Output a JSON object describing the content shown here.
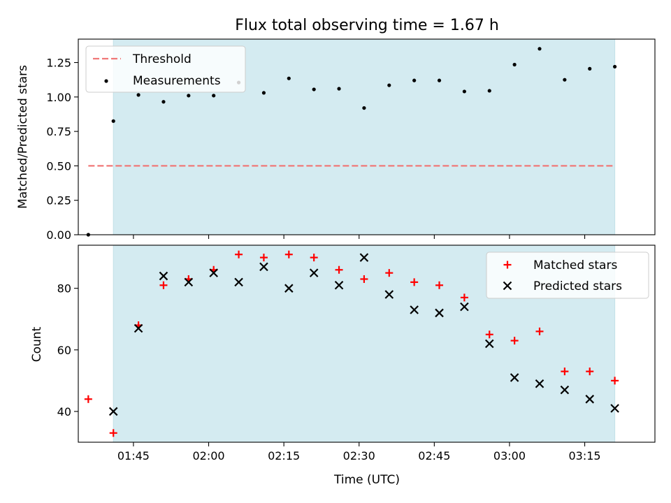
{
  "chart_data": [
    {
      "type": "scatter",
      "title": "Flux total observing time = 1.67 h",
      "ylabel": "Matched/Predicted stars",
      "xlim": [
        "01:34",
        "03:29"
      ],
      "ylim": [
        0,
        1.42
      ],
      "yticks": [
        0.0,
        0.25,
        0.5,
        0.75,
        1.0,
        1.25
      ],
      "ytick_labels": [
        "0.00",
        "0.25",
        "0.50",
        "0.75",
        "1.00",
        "1.25"
      ],
      "shaded_span": [
        "01:41",
        "03:21"
      ],
      "shade_color": "#d4ebf1",
      "legend_position": "upper left",
      "legend": [
        "Threshold",
        "Measurements"
      ],
      "threshold": {
        "name": "Threshold",
        "color": "#f07878",
        "y": 0.5,
        "x_range": [
          "01:36",
          "03:21"
        ]
      },
      "series": [
        {
          "name": "Measurements",
          "color": "#000000",
          "points": [
            {
              "x": "01:36",
              "y": 0.0
            },
            {
              "x": "01:41",
              "y": 0.825
            },
            {
              "x": "01:46",
              "y": 1.015
            },
            {
              "x": "01:51",
              "y": 0.965
            },
            {
              "x": "01:56",
              "y": 1.01
            },
            {
              "x": "02:01",
              "y": 1.01
            },
            {
              "x": "02:06",
              "y": 1.105
            },
            {
              "x": "02:11",
              "y": 1.03
            },
            {
              "x": "02:16",
              "y": 1.135
            },
            {
              "x": "02:21",
              "y": 1.055
            },
            {
              "x": "02:26",
              "y": 1.06
            },
            {
              "x": "02:31",
              "y": 0.92
            },
            {
              "x": "02:36",
              "y": 1.085
            },
            {
              "x": "02:41",
              "y": 1.12
            },
            {
              "x": "02:46",
              "y": 1.12
            },
            {
              "x": "02:51",
              "y": 1.04
            },
            {
              "x": "02:56",
              "y": 1.045
            },
            {
              "x": "03:01",
              "y": 1.235
            },
            {
              "x": "03:06",
              "y": 1.35
            },
            {
              "x": "03:11",
              "y": 1.125
            },
            {
              "x": "03:16",
              "y": 1.205
            },
            {
              "x": "03:21",
              "y": 1.22
            }
          ]
        }
      ]
    },
    {
      "type": "scatter",
      "xlabel": "Time (UTC)",
      "ylabel": "Count",
      "xlim": [
        "01:34",
        "03:29"
      ],
      "ylim": [
        30,
        94
      ],
      "xticks": [
        "01:45",
        "02:00",
        "02:15",
        "02:30",
        "02:45",
        "03:00",
        "03:15"
      ],
      "xtick_labels": [
        "01:45",
        "02:00",
        "02:15",
        "02:30",
        "02:45",
        "03:00",
        "03:15"
      ],
      "yticks": [
        40,
        60,
        80
      ],
      "ytick_labels": [
        "40",
        "60",
        "80"
      ],
      "shaded_span": [
        "01:41",
        "03:21"
      ],
      "shade_color": "#d4ebf1",
      "legend_position": "upper right",
      "legend": [
        "Matched stars",
        "Predicted stars"
      ],
      "series": [
        {
          "name": "Matched stars",
          "marker": "plus",
          "color": "#ff0000",
          "points": [
            {
              "x": "01:36",
              "y": 44
            },
            {
              "x": "01:41",
              "y": 33
            },
            {
              "x": "01:46",
              "y": 68
            },
            {
              "x": "01:51",
              "y": 81
            },
            {
              "x": "01:56",
              "y": 83
            },
            {
              "x": "02:01",
              "y": 86
            },
            {
              "x": "02:06",
              "y": 91
            },
            {
              "x": "02:11",
              "y": 90
            },
            {
              "x": "02:16",
              "y": 91
            },
            {
              "x": "02:21",
              "y": 90
            },
            {
              "x": "02:26",
              "y": 86
            },
            {
              "x": "02:31",
              "y": 83
            },
            {
              "x": "02:36",
              "y": 85
            },
            {
              "x": "02:41",
              "y": 82
            },
            {
              "x": "02:46",
              "y": 81
            },
            {
              "x": "02:51",
              "y": 77
            },
            {
              "x": "02:56",
              "y": 65
            },
            {
              "x": "03:01",
              "y": 63
            },
            {
              "x": "03:06",
              "y": 66
            },
            {
              "x": "03:11",
              "y": 53
            },
            {
              "x": "03:16",
              "y": 53
            },
            {
              "x": "03:21",
              "y": 50
            }
          ]
        },
        {
          "name": "Predicted stars",
          "marker": "x",
          "color": "#000000",
          "points": [
            {
              "x": "01:41",
              "y": 40
            },
            {
              "x": "01:46",
              "y": 67
            },
            {
              "x": "01:51",
              "y": 84
            },
            {
              "x": "01:56",
              "y": 82
            },
            {
              "x": "02:01",
              "y": 85
            },
            {
              "x": "02:06",
              "y": 82
            },
            {
              "x": "02:11",
              "y": 87
            },
            {
              "x": "02:16",
              "y": 80
            },
            {
              "x": "02:21",
              "y": 85
            },
            {
              "x": "02:26",
              "y": 81
            },
            {
              "x": "02:31",
              "y": 90
            },
            {
              "x": "02:36",
              "y": 78
            },
            {
              "x": "02:41",
              "y": 73
            },
            {
              "x": "02:46",
              "y": 72
            },
            {
              "x": "02:51",
              "y": 74
            },
            {
              "x": "02:56",
              "y": 62
            },
            {
              "x": "03:01",
              "y": 51
            },
            {
              "x": "03:06",
              "y": 49
            },
            {
              "x": "03:11",
              "y": 47
            },
            {
              "x": "03:16",
              "y": 44
            },
            {
              "x": "03:21",
              "y": 41
            }
          ]
        }
      ]
    }
  ]
}
